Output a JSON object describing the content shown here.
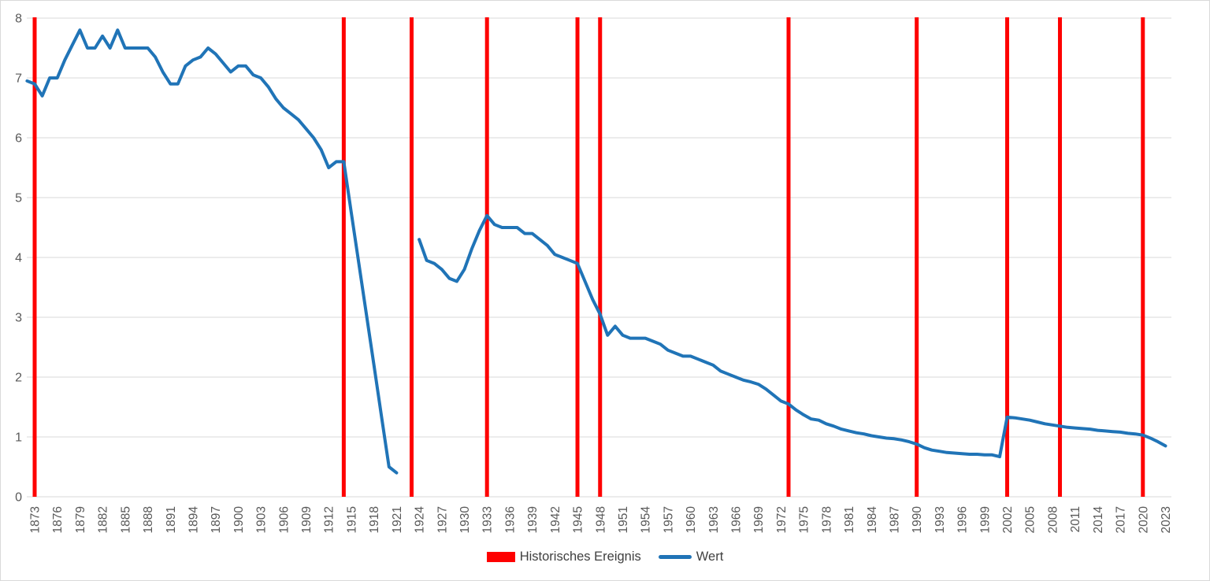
{
  "chart_data": {
    "type": "line",
    "grid": "horizontal",
    "legend_position": "bottom-center",
    "ylim": [
      0,
      8
    ],
    "y_ticks": [
      0,
      1,
      2,
      3,
      4,
      5,
      6,
      7,
      8
    ],
    "x_tick_labels": [
      1873,
      1876,
      1879,
      1882,
      1885,
      1888,
      1891,
      1894,
      1897,
      1900,
      1903,
      1906,
      1909,
      1912,
      1915,
      1918,
      1921,
      1924,
      1927,
      1930,
      1933,
      1936,
      1939,
      1942,
      1945,
      1948,
      1951,
      1954,
      1957,
      1960,
      1963,
      1966,
      1969,
      1972,
      1975,
      1978,
      1981,
      1984,
      1987,
      1990,
      1993,
      1996,
      1999,
      2002,
      2005,
      2008,
      2011,
      2014,
      2017,
      2020,
      2023
    ],
    "series": [
      {
        "name": "Historisches Ereignis",
        "type": "vertical-event-lines",
        "color": "#FE0000",
        "event_years": [
          1873,
          1914,
          1923,
          1933,
          1945,
          1948,
          1973,
          1990,
          2002,
          2009,
          2020
        ]
      },
      {
        "name": "Wert",
        "type": "line",
        "color": "#2074B7",
        "start_year": 1872,
        "values": [
          6.95,
          6.9,
          6.7,
          7.0,
          7.0,
          7.3,
          7.55,
          7.8,
          7.5,
          7.5,
          7.7,
          7.5,
          7.8,
          7.5,
          7.5,
          7.5,
          7.5,
          7.35,
          7.1,
          6.9,
          6.9,
          7.2,
          7.3,
          7.35,
          7.5,
          7.4,
          7.25,
          7.1,
          7.2,
          7.2,
          7.05,
          7.0,
          6.85,
          6.65,
          6.5,
          6.4,
          6.3,
          6.15,
          6.0,
          5.8,
          5.5,
          5.6,
          5.6,
          4.75,
          3.9,
          3.05,
          2.2,
          1.35,
          0.5,
          0.4,
          null,
          null,
          4.3,
          3.95,
          3.9,
          3.8,
          3.65,
          3.6,
          3.8,
          4.15,
          4.45,
          4.7,
          4.55,
          4.5,
          4.5,
          4.5,
          4.4,
          4.4,
          4.3,
          4.2,
          4.05,
          4.0,
          3.95,
          3.9,
          3.6,
          3.3,
          3.05,
          2.7,
          2.85,
          2.7,
          2.65,
          2.65,
          2.65,
          2.6,
          2.55,
          2.45,
          2.4,
          2.35,
          2.35,
          2.3,
          2.25,
          2.2,
          2.1,
          2.05,
          2.0,
          1.95,
          1.92,
          1.88,
          1.8,
          1.7,
          1.6,
          1.55,
          1.45,
          1.37,
          1.3,
          1.28,
          1.22,
          1.18,
          1.13,
          1.1,
          1.07,
          1.05,
          1.02,
          1.0,
          0.98,
          0.97,
          0.95,
          0.92,
          0.88,
          0.82,
          0.78,
          0.76,
          0.74,
          0.73,
          0.72,
          0.71,
          0.71,
          0.7,
          0.7,
          0.67,
          1.33,
          1.32,
          1.3,
          1.28,
          1.25,
          1.22,
          1.2,
          1.18,
          1.16,
          1.15,
          1.14,
          1.13,
          1.11,
          1.1,
          1.09,
          1.08,
          1.06,
          1.05,
          1.03,
          0.98,
          0.92,
          0.85
        ]
      }
    ]
  },
  "legend": {
    "items": [
      {
        "label": "Historisches Ereignis",
        "swatch": "rect",
        "color": "#FE0000"
      },
      {
        "label": "Wert",
        "swatch": "line",
        "color": "#2074B7"
      }
    ]
  },
  "colors": {
    "background": "#FFFFFF",
    "grid": "#D9D9D9",
    "border": "#D9D9D9",
    "axis_text": "#595959",
    "legend_text": "#404040"
  }
}
